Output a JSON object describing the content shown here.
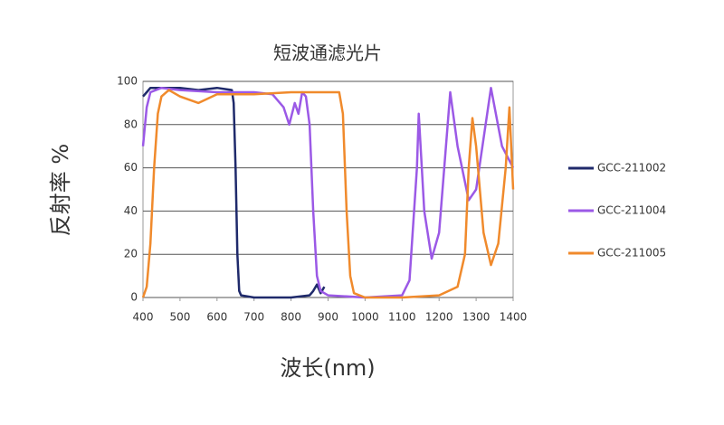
{
  "chart_data": {
    "type": "line",
    "title": "短波通滤光片",
    "x_label": "波长(nm)",
    "y_label": "反射率 %",
    "xlim": [
      400,
      1400
    ],
    "xticks": [
      400,
      500,
      600,
      700,
      800,
      900,
      1000,
      1100,
      1200,
      1300,
      1400
    ],
    "ylim": [
      0,
      100
    ],
    "yticks": [
      0,
      20,
      40,
      60,
      80,
      100
    ],
    "grid": true,
    "legend": "right",
    "series": [
      {
        "name": "GCC-211002",
        "color": "#1f2a6b",
        "x": [
          400,
          410,
          420,
          450,
          500,
          550,
          600,
          640,
          645,
          650,
          655,
          660,
          665,
          700,
          800,
          850,
          860,
          870,
          880,
          890
        ],
        "values": [
          93,
          95,
          97,
          97,
          97,
          96,
          97,
          96,
          90,
          60,
          20,
          3,
          1,
          0,
          0,
          1,
          3,
          6,
          2,
          5
        ]
      },
      {
        "name": "GCC-211004",
        "color": "#9b59e6",
        "x": [
          400,
          410,
          420,
          450,
          500,
          600,
          700,
          750,
          780,
          795,
          810,
          820,
          830,
          840,
          850,
          860,
          870,
          880,
          900,
          1000,
          1100,
          1120,
          1140,
          1145,
          1160,
          1180,
          1200,
          1230,
          1250,
          1280,
          1300,
          1340,
          1370,
          1400
        ],
        "values": [
          70,
          88,
          95,
          97,
          96,
          95,
          95,
          94,
          88,
          80,
          90,
          85,
          95,
          93,
          80,
          40,
          10,
          3,
          1,
          0,
          1,
          8,
          60,
          85,
          40,
          18,
          30,
          95,
          70,
          45,
          50,
          97,
          70,
          60
        ]
      },
      {
        "name": "GCC-211005",
        "color": "#f08a2c",
        "x": [
          400,
          410,
          420,
          430,
          440,
          450,
          470,
          500,
          550,
          600,
          700,
          800,
          900,
          930,
          940,
          950,
          960,
          970,
          1000,
          1100,
          1200,
          1250,
          1270,
          1280,
          1290,
          1300,
          1320,
          1340,
          1360,
          1380,
          1390,
          1400
        ],
        "values": [
          0,
          5,
          25,
          60,
          85,
          93,
          96,
          93,
          90,
          94,
          94,
          95,
          95,
          95,
          85,
          40,
          10,
          2,
          0,
          0,
          1,
          5,
          20,
          60,
          83,
          70,
          30,
          15,
          25,
          60,
          88,
          50
        ]
      }
    ]
  }
}
